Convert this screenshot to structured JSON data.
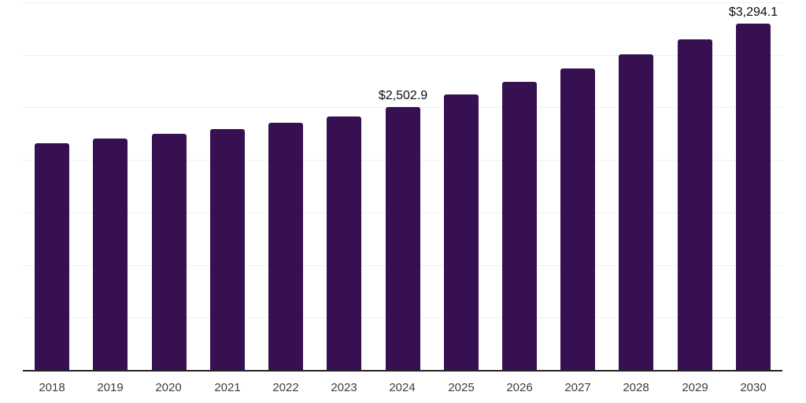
{
  "chart_data": {
    "type": "bar",
    "title": "",
    "xlabel": "",
    "ylabel": "",
    "categories": [
      "2018",
      "2019",
      "2020",
      "2021",
      "2022",
      "2023",
      "2024",
      "2025",
      "2026",
      "2027",
      "2028",
      "2029",
      "2030"
    ],
    "values": [
      2160,
      2200,
      2245,
      2297,
      2350,
      2410,
      2502.9,
      2620,
      2742,
      2870,
      3005,
      3146,
      3294.1
    ],
    "value_labels": {
      "2024": "$2,502.9",
      "2030": "$3,294.1"
    },
    "ylim": [
      0,
      3500
    ],
    "gridline_step": 500,
    "grid": true,
    "legend": false,
    "colors": {
      "bar": "#361050",
      "axis_line": "#222222",
      "gridline": "#f0f0f0",
      "tick_label": "#3c3c3c",
      "value_label": "#0d0d0d",
      "background": "#ffffff"
    }
  }
}
